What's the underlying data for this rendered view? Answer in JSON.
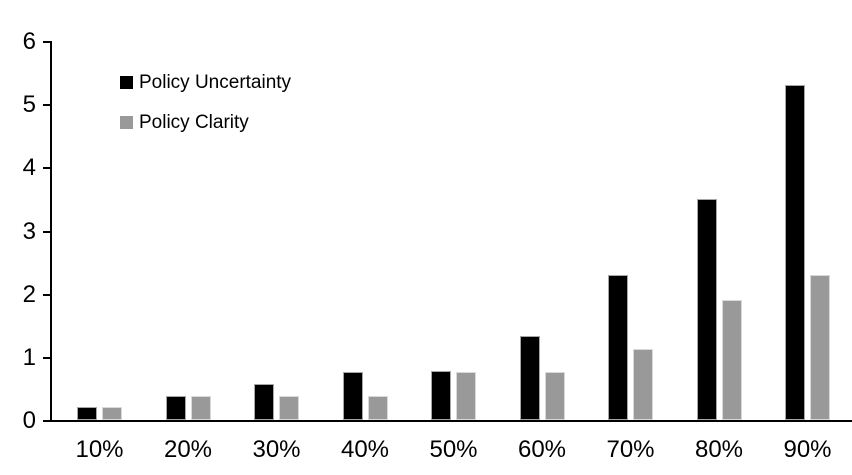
{
  "chart_data": {
    "type": "bar",
    "title": "",
    "xlabel": "",
    "ylabel": "",
    "categories": [
      "10%",
      "20%",
      "30%",
      "40%",
      "50%",
      "60%",
      "70%",
      "80%",
      "90%"
    ],
    "series": [
      {
        "name": "Policy Uncertainty",
        "color": "#000000",
        "border_color": "#a6a6a6",
        "values": [
          0.2,
          0.38,
          0.57,
          0.76,
          0.77,
          1.33,
          2.3,
          3.5,
          5.3
        ]
      },
      {
        "name": "Policy Clarity",
        "color": "#999999",
        "border_color": "#d9d9d9",
        "values": [
          0.2,
          0.38,
          0.38,
          0.38,
          0.76,
          0.76,
          1.13,
          1.9,
          2.3
        ]
      }
    ],
    "ylim": [
      0,
      6
    ],
    "yticks": [
      0,
      1,
      2,
      3,
      4,
      5,
      6
    ],
    "grid": false,
    "legend_position": "top-left"
  },
  "colors": {
    "background": "#ffffff",
    "axis": "#000000",
    "text": "#000000"
  }
}
